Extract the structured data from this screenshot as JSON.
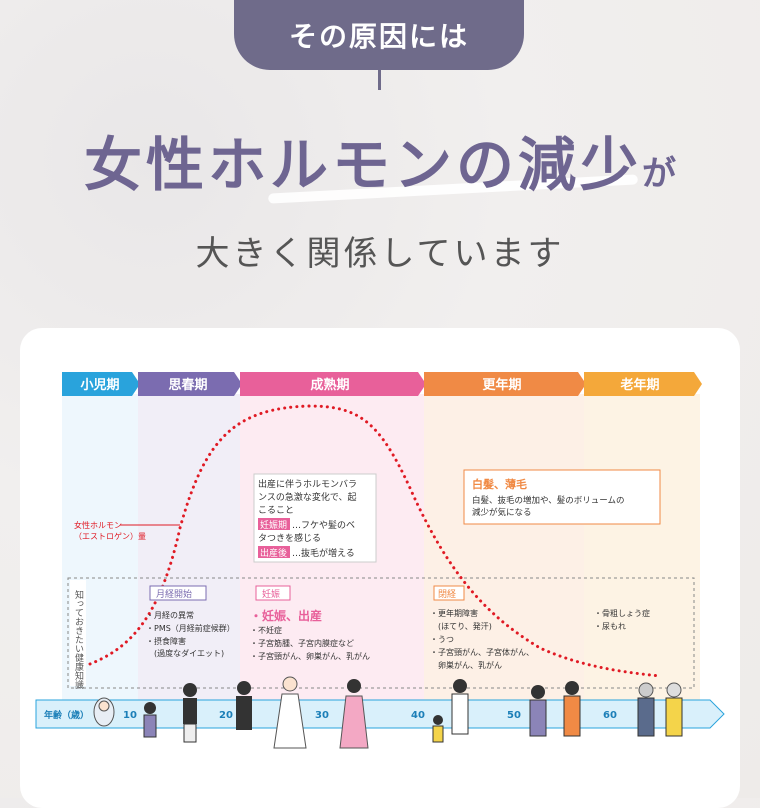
{
  "header": {
    "pill_label": "その原因には",
    "headline_main": "女性ホルモンの減少",
    "headline_suffix": "が",
    "subline": "大きく関係しています"
  },
  "diagram": {
    "phases": [
      {
        "label": "小児期",
        "color": "#29a3dc",
        "bg": "#eef7fd"
      },
      {
        "label": "思春期",
        "color": "#7b6cb0",
        "bg": "#f1eef7"
      },
      {
        "label": "成熟期",
        "color": "#e8609a",
        "bg": "#fdebf2"
      },
      {
        "label": "更年期",
        "color": "#f08a45",
        "bg": "#fdf0e6"
      },
      {
        "label": "老年期",
        "color": "#f4a83a",
        "bg": "#fdf3e4"
      }
    ],
    "hormone_label_1": "女性ホルモン",
    "hormone_label_2": "（エストロゲン）量",
    "sidebar_label": "知っておきたい健康知識",
    "callout_mature": {
      "line1": "出産に伴うホルモンバラ",
      "line2": "ンスの急激な変化で、起",
      "line3": "こること",
      "tag1": "妊娠期",
      "text1": "…フケや髪のベ",
      "text1b": "タつきを感じる",
      "tag2": "出産後",
      "text2": "…抜毛が増える"
    },
    "callout_aging": {
      "title": "白髪、薄毛",
      "line1": "白髪、抜毛の増加や、髪のボリュームの",
      "line2": "減少が気になる"
    },
    "puberty": {
      "tag": "月経開始",
      "items": [
        "・月経の異常",
        "・PMS（月経前症候群）",
        "・摂食障害",
        "　(過度なダイエット)"
      ]
    },
    "pregnancy": {
      "tag": "妊娠",
      "headline": "・妊娠、出産",
      "items": [
        "・不妊症",
        "・子宮筋腫、子宮内膜症など",
        "・子宮頸がん、卵巣がん、乳がん"
      ]
    },
    "menopause": {
      "tag": "閉経",
      "items": [
        "・更年期障害",
        "　(ほてり、発汗)",
        "・うつ",
        "・子宮頸がん、子宮体がん、",
        "　卵巣がん、乳がん"
      ]
    },
    "elderly": {
      "items": [
        "・骨粗しょう症",
        "・尿もれ"
      ]
    },
    "age_axis": {
      "label": "年齢（歳）",
      "ticks": [
        "10",
        "20",
        "30",
        "40",
        "50",
        "60"
      ]
    }
  }
}
